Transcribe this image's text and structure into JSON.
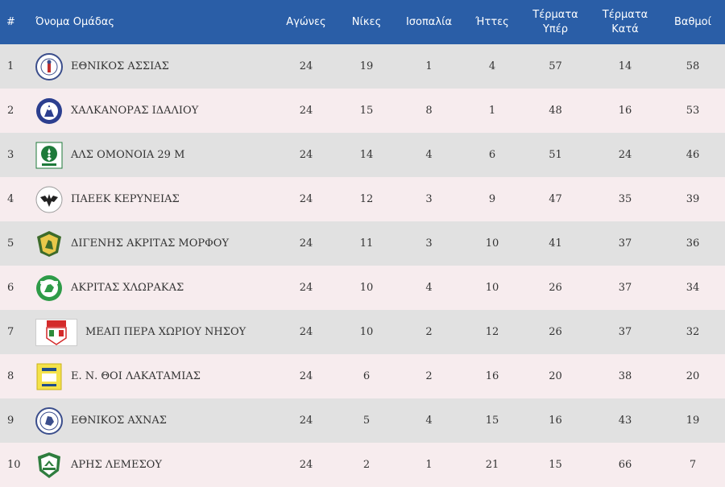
{
  "header": {
    "pos": "#",
    "team": "Όνομα Ομάδας",
    "played": "Αγώνες",
    "wins": "Νίκες",
    "draws": "Ισοπαλία",
    "losses": "Ήττες",
    "gf_line1": "Τέρματα",
    "gf_line2": "Υπέρ",
    "ga_line1": "Τέρματα",
    "ga_line2": "Κατά",
    "points": "Βαθμοί"
  },
  "colors": {
    "header_bg": "#2a5ea7",
    "row_odd": "#e1e1e1",
    "row_even": "#f7ecee"
  },
  "rows": [
    {
      "pos": "1",
      "team": "ΕΘΝΙΚΟΣ ΑΣΣΙΑΣ",
      "played": "24",
      "wins": "19",
      "draws": "1",
      "losses": "4",
      "gf": "57",
      "ga": "14",
      "points": "58",
      "logo": "ethnikos-assias-crest-icon"
    },
    {
      "pos": "2",
      "team": "ΧΑΛΚΑΝΟΡΑΣ ΙΔΑΛΙΟΥ",
      "played": "24",
      "wins": "15",
      "draws": "8",
      "losses": "1",
      "gf": "48",
      "ga": "16",
      "points": "53",
      "logo": "chalkanoras-crest-icon"
    },
    {
      "pos": "3",
      "team": "ΑΛΣ ΟΜΟΝΟΙΑ 29 Μ",
      "played": "24",
      "wins": "14",
      "draws": "4",
      "losses": "6",
      "gf": "51",
      "ga": "24",
      "points": "46",
      "logo": "omonoia-crest-icon"
    },
    {
      "pos": "4",
      "team": "ΠΑΕΕΚ ΚΕΡΥΝΕΙΑΣ",
      "played": "24",
      "wins": "12",
      "draws": "3",
      "losses": "9",
      "gf": "47",
      "ga": "35",
      "points": "39",
      "logo": "paeek-crest-icon"
    },
    {
      "pos": "5",
      "team": "ΔΙΓΕΝΗΣ ΑΚΡΙΤΑΣ ΜΟΡΦΟΥ",
      "played": "24",
      "wins": "11",
      "draws": "3",
      "losses": "10",
      "gf": "41",
      "ga": "37",
      "points": "36",
      "logo": "digenis-crest-icon"
    },
    {
      "pos": "6",
      "team": "ΑΚΡΙΤΑΣ ΧΛΩΡΑΚΑΣ",
      "played": "24",
      "wins": "10",
      "draws": "4",
      "losses": "10",
      "gf": "26",
      "ga": "37",
      "points": "34",
      "logo": "akritas-crest-icon"
    },
    {
      "pos": "7",
      "team": "ΜΕΑΠ ΠΕΡΑ ΧΩΡΙΟΥ ΝΗΣΟΥ",
      "played": "24",
      "wins": "10",
      "draws": "2",
      "losses": "12",
      "gf": "26",
      "ga": "37",
      "points": "32",
      "logo": "meap-crest-icon"
    },
    {
      "pos": "8",
      "team": "Ε. Ν. ΘΟΙ ΛΑΚΑΤΑΜΙΑΣ",
      "played": "24",
      "wins": "6",
      "draws": "2",
      "losses": "16",
      "gf": "20",
      "ga": "38",
      "points": "20",
      "logo": "thoi-crest-icon"
    },
    {
      "pos": "9",
      "team": "ΕΘΝΙΚΟΣ ΑΧΝΑΣ",
      "played": "24",
      "wins": "5",
      "draws": "4",
      "losses": "15",
      "gf": "16",
      "ga": "43",
      "points": "19",
      "logo": "ethnikos-achnas-crest-icon"
    },
    {
      "pos": "10",
      "team": "ΑΡΗΣ ΛΕΜΕΣΟΥ",
      "played": "24",
      "wins": "2",
      "draws": "1",
      "losses": "21",
      "gf": "15",
      "ga": "66",
      "points": "7",
      "logo": "aris-crest-icon"
    }
  ]
}
